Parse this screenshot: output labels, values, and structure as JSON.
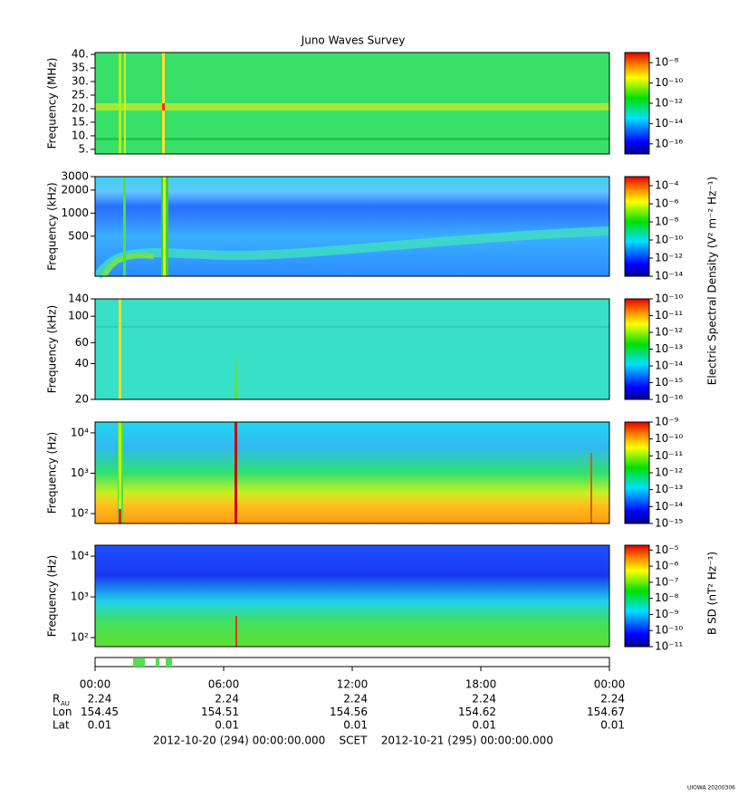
{
  "title": "Juno Waves Survey",
  "chart_data": [
    {
      "type": "spectrogram",
      "ylabel": "Frequency (MHz)",
      "ylim": [
        3.3,
        40.7
      ],
      "log": false,
      "yticks": [
        {
          "value": 5,
          "label": "5."
        },
        {
          "value": 10,
          "label": "10."
        },
        {
          "value": 15,
          "label": "15."
        },
        {
          "value": 20,
          "label": "20."
        },
        {
          "value": 25,
          "label": "25."
        },
        {
          "value": 30,
          "label": "30."
        },
        {
          "value": 35,
          "label": "35."
        },
        {
          "value": 40,
          "label": "40."
        }
      ],
      "zlim": [
        1e-17,
        1e-07
      ],
      "zticks": [
        {
          "value": 1e-08,
          "label": "10⁻⁸"
        },
        {
          "value": 1e-10,
          "label": "10⁻¹⁰"
        },
        {
          "value": 1e-12,
          "label": "10⁻¹²"
        },
        {
          "value": 1e-14,
          "label": "10⁻¹⁴"
        },
        {
          "value": 1e-16,
          "label": "10⁻¹⁶"
        }
      ]
    },
    {
      "type": "spectrogram",
      "ylabel": "Frequency (kHz)",
      "ylim": [
        150,
        3000
      ],
      "log": true,
      "yticks": [
        500,
        1000,
        2000,
        3000
      ],
      "zlim": [
        1e-14,
        0.001
      ],
      "zticks": [
        {
          "value": 0.0001,
          "label": "10⁻⁴"
        },
        {
          "value": 1e-06,
          "label": "10⁻⁶"
        },
        {
          "value": 1e-08,
          "label": "10⁻⁸"
        },
        {
          "value": 1e-10,
          "label": "10⁻¹⁰"
        },
        {
          "value": 1e-12,
          "label": "10⁻¹²"
        },
        {
          "value": 1e-14,
          "label": "10⁻¹⁴"
        }
      ]
    },
    {
      "type": "spectrogram",
      "ylabel": "Frequency (kHz)",
      "ylim": [
        20,
        140
      ],
      "log": true,
      "yticks": [
        20,
        40,
        60,
        100,
        140
      ],
      "zlim": [
        1e-16,
        1e-10
      ],
      "zticks": [
        {
          "value": 1e-10,
          "label": "10⁻¹⁰"
        },
        {
          "value": 1e-11,
          "label": "10⁻¹¹"
        },
        {
          "value": 1e-12,
          "label": "10⁻¹²"
        },
        {
          "value": 1e-13,
          "label": "10⁻¹³"
        },
        {
          "value": 1e-14,
          "label": "10⁻¹⁴"
        },
        {
          "value": 1e-15,
          "label": "10⁻¹⁵"
        },
        {
          "value": 1e-16,
          "label": "10⁻¹⁶"
        }
      ]
    },
    {
      "type": "spectrogram",
      "ylabel": "Frequency (Hz)",
      "ylim": [
        57,
        18500
      ],
      "log": true,
      "yticks": [
        {
          "value": 100,
          "label": "10²"
        },
        {
          "value": 1000,
          "label": "10³"
        },
        {
          "value": 10000,
          "label": "10⁴"
        }
      ],
      "zlim": [
        1e-15,
        1e-09
      ],
      "zticks": [
        {
          "value": 1e-09,
          "label": "10⁻⁹"
        },
        {
          "value": 1e-10,
          "label": "10⁻¹⁰"
        },
        {
          "value": 1e-11,
          "label": "10⁻¹¹"
        },
        {
          "value": 1e-12,
          "label": "10⁻¹²"
        },
        {
          "value": 1e-13,
          "label": "10⁻¹³"
        },
        {
          "value": 1e-14,
          "label": "10⁻¹⁴"
        },
        {
          "value": 1e-15,
          "label": "10⁻¹⁵"
        }
      ]
    },
    {
      "type": "spectrogram",
      "ylabel": "Frequency (Hz)",
      "ylim": [
        60,
        18500
      ],
      "log": true,
      "yticks": [
        {
          "value": 100,
          "label": "10²"
        },
        {
          "value": 1000,
          "label": "10³"
        },
        {
          "value": 10000,
          "label": "10⁴"
        }
      ],
      "zlim": [
        1e-11,
        2e-05
      ],
      "zticks": [
        {
          "value": 1e-05,
          "label": "10⁻⁵"
        },
        {
          "value": 1e-06,
          "label": "10⁻⁶"
        },
        {
          "value": 1e-07,
          "label": "10⁻⁷"
        },
        {
          "value": 1e-08,
          "label": "10⁻⁸"
        },
        {
          "value": 1e-09,
          "label": "10⁻⁹"
        },
        {
          "value": 1e-10,
          "label": "10⁻¹⁰"
        },
        {
          "value": 1e-11,
          "label": "10⁻¹¹"
        }
      ]
    }
  ],
  "colorbar_labels": [
    "Electric Spectral Density (V² m⁻² Hz⁻¹)",
    "B SD (nT² Hz⁻¹)"
  ],
  "xticks": [
    "00:00",
    "06:00",
    "12:00",
    "18:00",
    "00:00"
  ],
  "ephemeris": [
    {
      "label": "R",
      "sub": "AU",
      "values": [
        "2.24",
        "2.24",
        "2.24",
        "2.24",
        "2.24"
      ]
    },
    {
      "label": "Lon",
      "values": [
        "154.45",
        "154.51",
        "154.56",
        "154.62",
        "154.67"
      ]
    },
    {
      "label": "Lat",
      "values": [
        "0.01",
        "0.01",
        "0.01",
        "0.01",
        "0.01"
      ]
    }
  ],
  "footer": "2012-10-20 (294) 00:00:00.000    SCET    2012-10-21 (295) 00:00:00.000",
  "credit": "UIOWA 20200306"
}
